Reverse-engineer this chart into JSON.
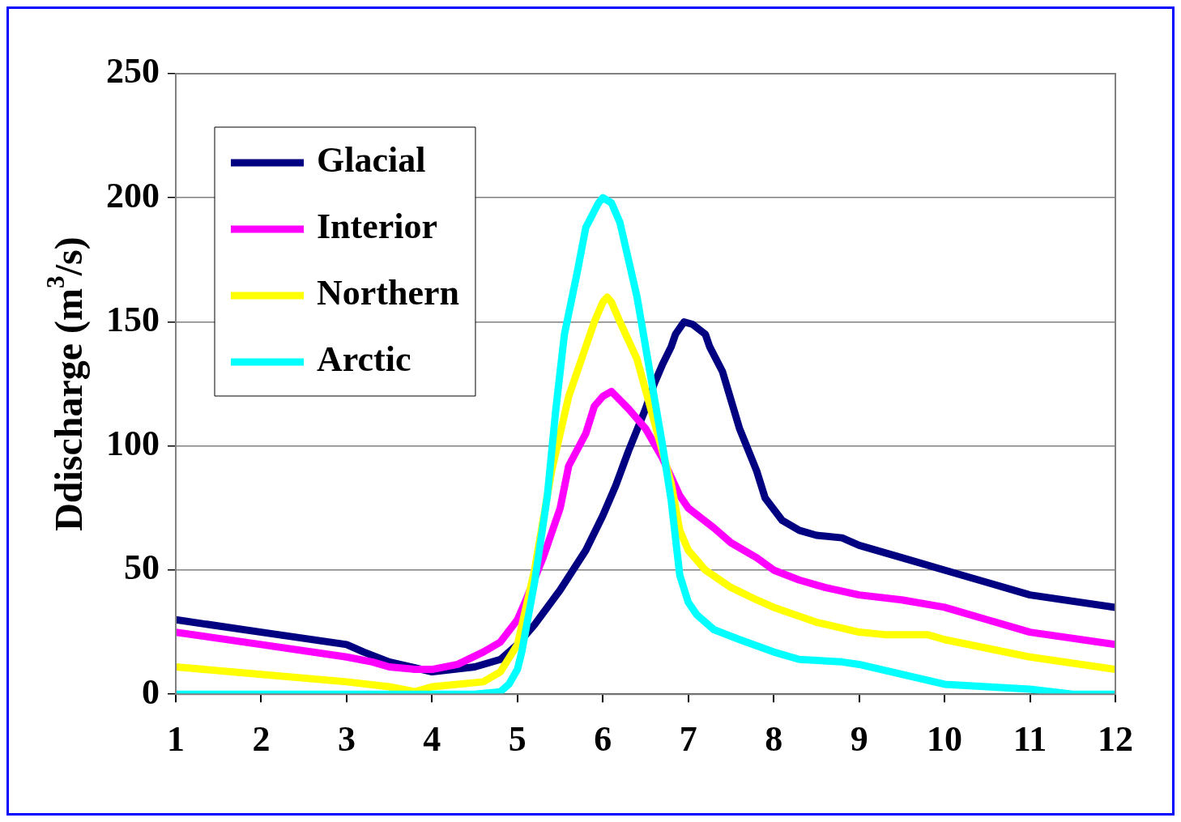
{
  "chart_data": {
    "type": "line",
    "ylabel": "Ddischarge (m$^{3}$/s)",
    "xlim": [
      1,
      12
    ],
    "xticks": [
      1,
      2,
      3,
      4,
      5,
      6,
      7,
      8,
      9,
      10,
      11,
      12
    ],
    "ylim": [
      0,
      250
    ],
    "yticks": [
      0,
      50,
      100,
      150,
      200,
      250
    ],
    "grid": "y",
    "legend": "top left",
    "marker": "none",
    "line_style": "solid",
    "series": [
      {
        "name": "Glacial",
        "color": "#000080",
        "x": [
          1,
          2,
          3,
          3.2,
          3.5,
          4,
          4.5,
          4.8,
          5,
          5.2,
          5.5,
          5.8,
          6,
          6.15,
          6.3,
          6.5,
          6.6,
          6.7,
          6.8,
          6.85,
          6.95,
          7.05,
          7.2,
          7.25,
          7.4,
          7.6,
          7.8,
          7.9,
          8.1,
          8.3,
          8.5,
          8.8,
          9,
          9.5,
          10,
          10.5,
          11,
          12
        ],
        "values": [
          30,
          25,
          20,
          17,
          13,
          9,
          11,
          14,
          20,
          28,
          42,
          58,
          72,
          84,
          98,
          115,
          125,
          133,
          140,
          145,
          150,
          149,
          145,
          140,
          130,
          107,
          90,
          79,
          70,
          66,
          64,
          63,
          60,
          55,
          50,
          45,
          40,
          35
        ]
      },
      {
        "name": "Interior",
        "color": "#ff00ff",
        "x": [
          1,
          2,
          3,
          3.3,
          3.5,
          3.8,
          4,
          4.3,
          4.6,
          4.8,
          5,
          5.1,
          5.3,
          5.5,
          5.6,
          5.8,
          5.9,
          6,
          6.1,
          6.3,
          6.5,
          6.7,
          6.9,
          7,
          7.3,
          7.5,
          7.8,
          8,
          8.3,
          8.6,
          9,
          9.5,
          10,
          10.5,
          11,
          12
        ],
        "values": [
          25,
          20,
          15,
          13,
          11,
          10,
          10,
          12,
          17,
          21,
          30,
          38,
          55,
          75,
          92,
          105,
          116,
          120,
          122,
          115,
          107,
          95,
          80,
          75,
          67,
          61,
          55,
          50,
          46,
          43,
          40,
          38,
          35,
          30,
          25,
          20
        ]
      },
      {
        "name": "Northern",
        "color": "#ffff00",
        "x": [
          1,
          2,
          3,
          3.5,
          3.8,
          4,
          4.3,
          4.6,
          4.8,
          5,
          5.2,
          5.4,
          5.6,
          5.8,
          5.9,
          6,
          6.05,
          6.1,
          6.2,
          6.4,
          6.6,
          6.8,
          6.9,
          7,
          7.2,
          7.5,
          7.8,
          8,
          8.5,
          9,
          9.3,
          9.8,
          10,
          11,
          12
        ],
        "values": [
          11,
          8,
          5,
          3,
          1,
          3,
          4,
          5,
          9,
          20,
          50,
          90,
          120,
          140,
          150,
          158,
          160,
          158,
          150,
          135,
          110,
          85,
          66,
          58,
          50,
          43,
          38,
          35,
          29,
          25,
          24,
          24,
          22,
          15,
          10
        ]
      },
      {
        "name": "Arctic",
        "color": "#00ffff",
        "x": [
          1,
          3,
          4.5,
          4.8,
          4.9,
          5,
          5.05,
          5.2,
          5.35,
          5.45,
          5.55,
          5.7,
          5.8,
          5.95,
          6,
          6.1,
          6.2,
          6.3,
          6.4,
          6.5,
          6.6,
          6.7,
          6.8,
          6.9,
          7,
          7.1,
          7.3,
          7.6,
          8,
          8.3,
          8.8,
          9,
          9.5,
          10,
          11,
          11.5,
          12
        ],
        "values": [
          0,
          0,
          0,
          1,
          4,
          10,
          17,
          45,
          80,
          115,
          145,
          170,
          188,
          198,
          200,
          198,
          190,
          175,
          160,
          140,
          120,
          100,
          78,
          48,
          37,
          32,
          26,
          22,
          17,
          14,
          13,
          12,
          8,
          4,
          2,
          0,
          0
        ]
      }
    ]
  }
}
